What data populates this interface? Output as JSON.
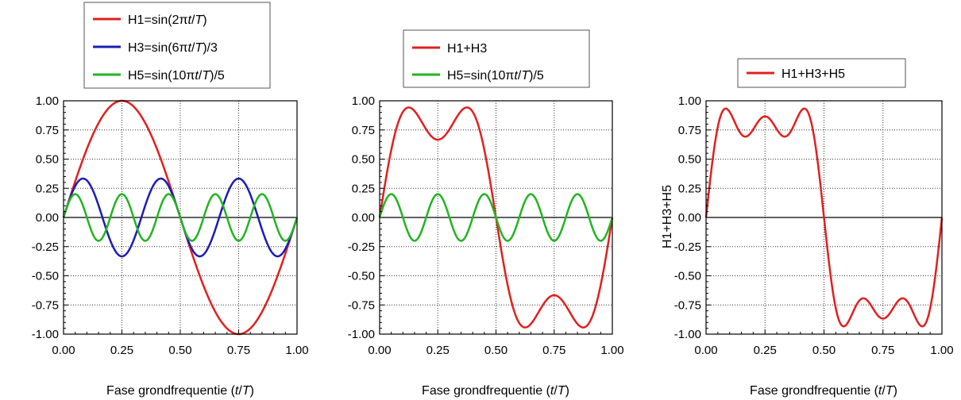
{
  "chart_data": [
    {
      "type": "line",
      "xlabel": "Fase grondfrequentie (t/T)",
      "xlabel_parts": {
        "prefix": "Fase grondfrequentie (",
        "var1": "t",
        "slash": "/",
        "var2": "T",
        "suffix": ")"
      },
      "ylabel": "",
      "xlim": [
        0,
        1
      ],
      "ylim": [
        -1,
        1
      ],
      "xticks": [
        "0.00",
        "0.25",
        "0.50",
        "0.75",
        "1.00"
      ],
      "yticks": [
        "1.00",
        "0.75",
        "0.50",
        "0.25",
        "0.00",
        "-0.25",
        "-0.50",
        "-0.75",
        "-1.00"
      ],
      "grid": true,
      "legend_position": "top",
      "series": [
        {
          "name": "H1=sin(2πt/T)",
          "legend_parts": [
            "H1=sin(2π",
            "t",
            "/",
            "T",
            ")"
          ],
          "color": "#e02020",
          "harmonics": [
            1
          ],
          "x": [
            0,
            0.125,
            0.25,
            0.375,
            0.5,
            0.625,
            0.75,
            0.875,
            1
          ],
          "y": [
            0,
            0.71,
            1.0,
            0.71,
            0,
            -0.71,
            -1.0,
            -0.71,
            0
          ]
        },
        {
          "name": "H3=sin(6πt/T)/3",
          "legend_parts": [
            "H3=sin(6π",
            "t",
            "/",
            "T",
            ")/3"
          ],
          "color": "#1c1cb4",
          "harmonics": [
            3
          ],
          "x": [
            0,
            0.0833,
            0.25,
            0.4167,
            0.5,
            0.5833,
            0.75,
            0.9167,
            1
          ],
          "y": [
            0,
            0.333,
            -0.333,
            0.333,
            0,
            -0.333,
            0.333,
            -0.333,
            0
          ]
        },
        {
          "name": "H5=sin(10πt/T)/5",
          "legend_parts": [
            "H5=sin(10π",
            "t",
            "/",
            "T",
            ")/5"
          ],
          "color": "#22b422",
          "harmonics": [
            5
          ],
          "x": [
            0,
            0.05,
            0.15,
            0.25,
            0.35,
            0.45,
            0.55,
            0.65,
            0.75,
            0.85,
            0.95,
            1
          ],
          "y": [
            0,
            0.2,
            -0.2,
            0.2,
            -0.2,
            0.2,
            -0.2,
            0.2,
            -0.2,
            0.2,
            -0.2,
            0
          ]
        }
      ]
    },
    {
      "type": "line",
      "xlabel": "Fase grondfrequentie (t/T)",
      "xlabel_parts": {
        "prefix": "Fase grondfrequentie (",
        "var1": "t",
        "slash": "/",
        "var2": "T",
        "suffix": ")"
      },
      "ylabel": "",
      "xlim": [
        0,
        1
      ],
      "ylim": [
        -1,
        1
      ],
      "xticks": [
        "0.00",
        "0.25",
        "0.50",
        "0.75",
        "1.00"
      ],
      "yticks": [
        "1.00",
        "0.75",
        "0.50",
        "0.25",
        "0.00",
        "-0.25",
        "-0.50",
        "-0.75",
        "-1.00"
      ],
      "grid": true,
      "legend_position": "top",
      "series": [
        {
          "name": "H1+H3",
          "legend_parts": [
            "H1+H3"
          ],
          "color": "#e02020",
          "harmonics": [
            1,
            3
          ],
          "x": [
            0,
            0.125,
            0.25,
            0.375,
            0.5,
            0.625,
            0.75,
            0.875,
            1
          ],
          "y": [
            0,
            0.943,
            0.667,
            0.943,
            0,
            -0.943,
            -0.667,
            -0.943,
            0
          ]
        },
        {
          "name": "H5=sin(10πt/T)/5",
          "legend_parts": [
            "H5=sin(10π",
            "t",
            "/",
            "T",
            ")/5"
          ],
          "color": "#22b422",
          "harmonics": [
            5
          ],
          "x": [
            0,
            0.05,
            0.15,
            0.25,
            0.35,
            0.45,
            0.55,
            0.65,
            0.75,
            0.85,
            0.95,
            1
          ],
          "y": [
            0,
            0.2,
            -0.2,
            0.2,
            -0.2,
            0.2,
            -0.2,
            0.2,
            -0.2,
            0.2,
            -0.2,
            0
          ]
        }
      ]
    },
    {
      "type": "line",
      "xlabel": "Fase grondfrequentie (t/T)",
      "xlabel_parts": {
        "prefix": "Fase grondfrequentie (",
        "var1": "t",
        "slash": "/",
        "var2": "T",
        "suffix": ")"
      },
      "ylabel": "H1+H3+H5",
      "xlim": [
        0,
        1
      ],
      "ylim": [
        -1,
        1
      ],
      "xticks": [
        "0.00",
        "0.25",
        "0.50",
        "0.75",
        "1.00"
      ],
      "yticks": [
        "1.00",
        "0.75",
        "0.50",
        "0.25",
        "0.00",
        "-0.25",
        "-0.50",
        "-0.75",
        "-1.00"
      ],
      "grid": true,
      "legend_position": "top",
      "series": [
        {
          "name": "H1+H3+H5",
          "legend_parts": [
            "H1+H3+H5"
          ],
          "color": "#e02020",
          "harmonics": [
            1,
            3,
            5
          ],
          "x": [
            0,
            0.083,
            0.167,
            0.25,
            0.333,
            0.417,
            0.5,
            0.583,
            0.667,
            0.75,
            0.833,
            0.917,
            1
          ],
          "y": [
            0,
            0.933,
            0.693,
            0.867,
            0.693,
            0.933,
            0,
            -0.933,
            -0.693,
            -0.867,
            -0.693,
            -0.933,
            0
          ]
        }
      ]
    }
  ]
}
